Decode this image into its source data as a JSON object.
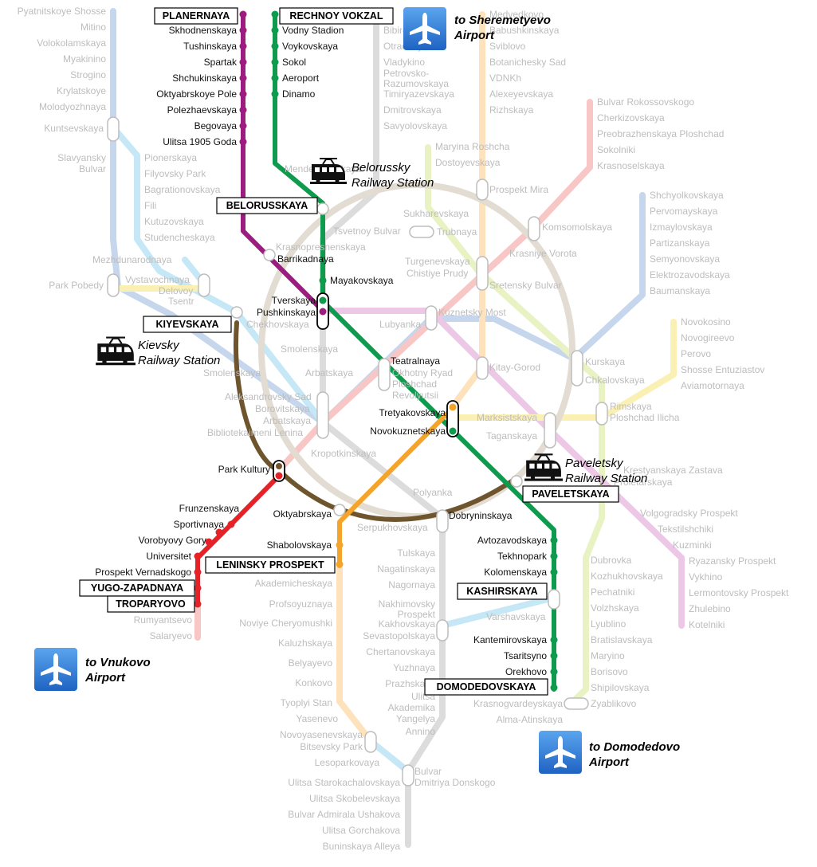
{
  "colors": {
    "line2": "#0e9b4d",
    "line7": "#9c1d7f",
    "line1": "#e42228",
    "line5": "#6e552e",
    "line6": "#f5a42a",
    "faint_gray": "#dcdcdc",
    "faint_pink": "#f9c6c6",
    "faint_blue": "#c6d6ec",
    "faint_lightblue": "#c6e8f6",
    "faint_beige": "#e2dcd2",
    "faint_yellow": "#fbf0b4",
    "faint_orange": "#fde2bc",
    "faint_green": "#e8f2c2",
    "faint_violet": "#ecc8e6",
    "airport_blue": "#2f7fd6"
  },
  "airports": [
    {
      "line1": "to Sheremetyevo",
      "line2": "Airport",
      "icon": "airplane-icon"
    },
    {
      "line1": "to Vnukovo",
      "line2": "Airport",
      "icon": "airplane-icon"
    },
    {
      "line1": "to Domodedovo",
      "line2": "Airport",
      "icon": "airplane-icon"
    }
  ],
  "railway_stations": [
    {
      "line1": "Belorussky",
      "line2": "Railway Station",
      "icon": "train-icon"
    },
    {
      "line1": "Kievsky",
      "line2": "Railway Station",
      "icon": "train-icon"
    },
    {
      "line1": "Paveletsky",
      "line2": "Railway Station",
      "icon": "train-icon"
    }
  ],
  "boxed_stations": [
    "PLANERNAYA",
    "RECHNOY VOKZAL",
    "BELORUSSKAYA",
    "KIYEVSKAYA",
    "PAVELETSKAYA",
    "LENINSKY PROSPEKT",
    "YUGO-ZAPADNAYA",
    "TROPARYOVO",
    "KASHIRSKAYA",
    "DOMODEDOVSKAYA"
  ],
  "stations": [
    "Skhodnenskaya",
    "Tushinskaya",
    "Spartak",
    "Shchukinskaya",
    "Oktyabrskoye Pole",
    "Polezhaevskaya",
    "Begovaya",
    "Ulitsa 1905 Goda",
    "Vodny Stadion",
    "Voykovskaya",
    "Sokol",
    "Aeroport",
    "Dinamo",
    "Barrikadnaya",
    "Mayakovskaya",
    "Tverskaya",
    "Pushkinskaya",
    "Teatralnaya",
    "Tretyakovskaya",
    "Novokuznetskaya",
    "Park Kultury",
    "Oktyabrskaya",
    "Dobryninskaya",
    "Shabolovskaya",
    "Frunzenskaya",
    "Sportivnaya",
    "Vorobyovy Gory",
    "Universitet",
    "Prospekt Vernadskogo",
    "Avtozavodskaya",
    "Tekhnopark",
    "Kolomenskaya",
    "Kantemirovskaya",
    "Tsaritsyno",
    "Orekhovo"
  ],
  "faint_labels": [
    "Pyatnitskoye Shosse",
    "Mitino",
    "Volokolamskaya",
    "Myakinino",
    "Strogino",
    "Krylatskoye",
    "Molodyozhnaya",
    "Kuntsevskaya",
    "Slavyansky",
    "Bulvar",
    "Pionerskaya",
    "Filyovsky Park",
    "Bagrationovskaya",
    "Fili",
    "Kutuzovskaya",
    "Studencheskaya",
    "Mezhdunarodnaya",
    "Vystavochnaya",
    "Delovoy",
    "Tsentr",
    "Park Pobedy",
    "Chekhovskaya",
    "Smolenskaya",
    "Smolenskaya",
    "Arbatskaya",
    "Arbatskaya",
    "Aleksandrovsky Sad",
    "Borovitskaya",
    "Bibliotekaimeni Lenina",
    "Kropotkinskaya",
    "Krasnopresnenskaya",
    "Tsvetnoy Bulvar",
    "Mendeleyevskaya",
    "Okhotny Ryad",
    "Ploshchad",
    "Revolyutsii",
    "Medvedkovo",
    "Babushkinskaya",
    "Sviblovo",
    "Botanichesky Sad",
    "VDNKh",
    "Alexeyevskaya",
    "Rizhskaya",
    "Prospekt Mira",
    "Bibirevo",
    "Otradnoye",
    "Vladykino",
    "Petrovsko-",
    "Razumovskaya",
    "Timiryazevskaya",
    "Dmitrovskaya",
    "Savyolovskaya",
    "Maryina Roshcha",
    "Dostoyevskaya",
    "Sukharevskaya",
    "Trubnaya",
    "Turgenevskaya",
    "Chistiye Prudy",
    "Sretensky Bulvar",
    "Krasniye Vorota",
    "Komsomolskaya",
    "Bulvar Rokossovskogo",
    "Cherkizovskaya",
    "Preobrazhenskaya Ploshchad",
    "Sokolniki",
    "Krasnoselskaya",
    "Shchyolkovskaya",
    "Pervomayskaya",
    "Izmaylovskaya",
    "Partizanskaya",
    "Semyonovskaya",
    "Elektrozavodskaya",
    "Baumanskaya",
    "Kuznetsky Most",
    "Lubyanka",
    "Kitay-Gorod",
    "Kurskaya",
    "Chkalovskaya",
    "Marksistskaya",
    "Taganskaya",
    "Rimskaya",
    "Ploshchad Ilicha",
    "Novokosino",
    "Novogireevo",
    "Perovo",
    "Shosse Entuziastov",
    "Aviamotornaya",
    "Krestyanskaya Zastava",
    "Proletarskaya",
    "Volgogradsky Prospekt",
    "Tekstilshchiki",
    "Kuzminki",
    "Ryazansky Prospekt",
    "Vykhino",
    "Lermontovsky Prospekt",
    "Zhulebino",
    "Kotelniki",
    "Dubrovka",
    "Kozhukhovskaya",
    "Pechatniki",
    "Volzhskaya",
    "Lyublino",
    "Bratislavskaya",
    "Maryino",
    "Borisovo",
    "Shipilovskaya",
    "Zyablikovo",
    "Krasnogvardeyskaya",
    "Alma-Atinskaya",
    "Varshavskaya",
    "Kakhovskaya",
    "Sevastopolskaya",
    "Chertanovskaya",
    "Yuzhnaya",
    "Prazhskaya",
    "Ulitsa",
    "Akademika",
    "Yangelya",
    "Annino",
    "Bulvar",
    "Dmitriya Donskogo",
    "Ulitsa Starokachalovskaya",
    "Ulitsa Skobelevskaya",
    "Bulvar Admirala Ushakova",
    "Ulitsa Gorchakova",
    "Buninskaya Alleya",
    "Polyanka",
    "Serpukhovskaya",
    "Tulskaya",
    "Nagatinskaya",
    "Nagornaya",
    "Nakhimovsky",
    "Prospekt",
    "Akademicheskaya",
    "Profsoyuznaya",
    "Noviye Cheryomushki",
    "Kaluzhskaya",
    "Belyayevo",
    "Konkovo",
    "Tyoplyi Stan",
    "Yasenevo",
    "Novoyasenevskaya",
    "Bitsevsky Park",
    "Lesoparkovaya",
    "Rumyantsevo",
    "Salaryevo"
  ]
}
